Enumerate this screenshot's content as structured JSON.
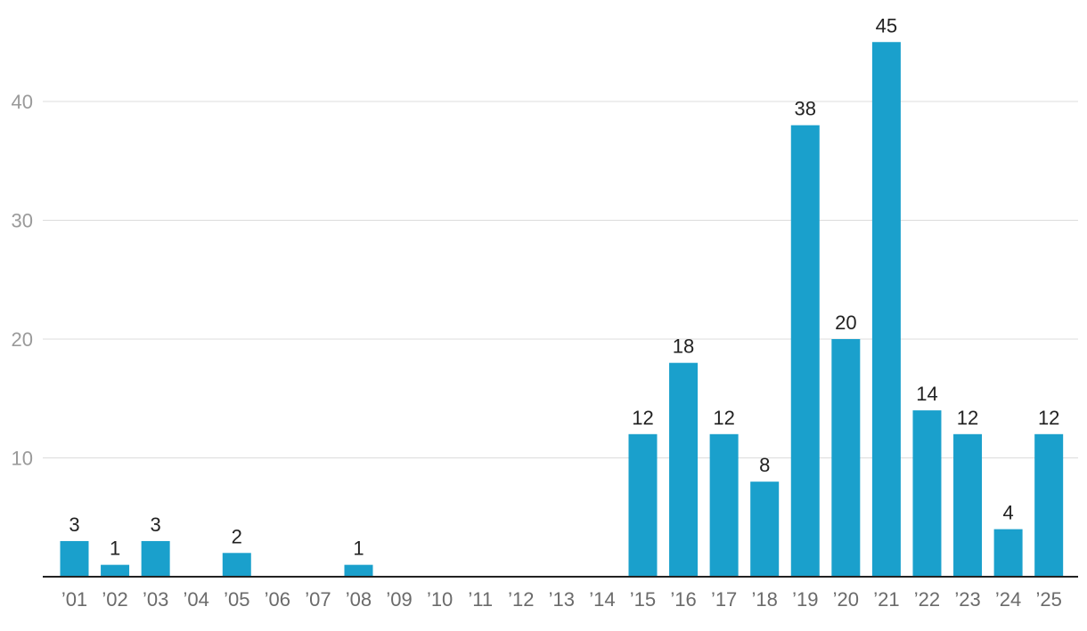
{
  "chart_data": {
    "type": "bar",
    "title": "",
    "xlabel": "",
    "ylabel": "",
    "categories": [
      "’01",
      "’02",
      "’03",
      "’04",
      "’05",
      "’06",
      "’07",
      "’08",
      "’09",
      "’10",
      "’11",
      "’12",
      "’13",
      "’14",
      "’15",
      "’16",
      "’17",
      "’18",
      "’19",
      "’20",
      "’21",
      "’22",
      "’23",
      "’24",
      "’25"
    ],
    "values": [
      3,
      1,
      3,
      0,
      2,
      0,
      0,
      1,
      0,
      0,
      0,
      0,
      0,
      0,
      12,
      18,
      12,
      8,
      38,
      20,
      45,
      14,
      12,
      4,
      12
    ],
    "ylim": [
      0,
      45
    ],
    "yticks": [
      10,
      20,
      30,
      40
    ],
    "ytick_labels": [
      "10",
      "20",
      "30",
      "40"
    ],
    "grid": true,
    "bar_color": "#1aa0cc",
    "show_value_labels": true
  }
}
